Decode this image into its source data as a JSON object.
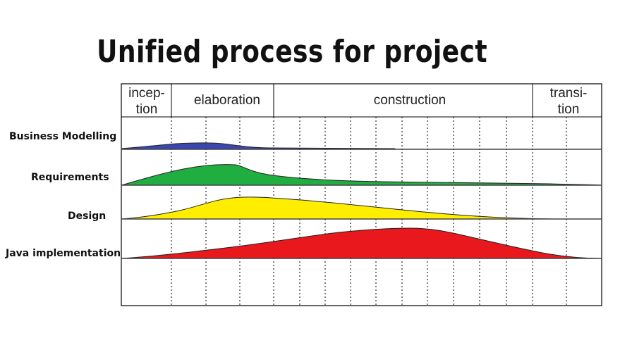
{
  "title": "Unified process for project",
  "phases": [
    {
      "line1": "incep-",
      "line2": "tion"
    },
    {
      "line1": "elaboration",
      "line2": ""
    },
    {
      "line1": "construction",
      "line2": ""
    },
    {
      "line1": "transi-",
      "line2": "tion"
    }
  ],
  "rows": [
    {
      "label": "Business Modelling",
      "color": "#3b46b0"
    },
    {
      "label": "Requirements",
      "color": "#1fae3f"
    },
    {
      "label": "Design",
      "color": "#ffee00"
    },
    {
      "label": "Java implementation",
      "color": "#e8181c"
    }
  ]
}
